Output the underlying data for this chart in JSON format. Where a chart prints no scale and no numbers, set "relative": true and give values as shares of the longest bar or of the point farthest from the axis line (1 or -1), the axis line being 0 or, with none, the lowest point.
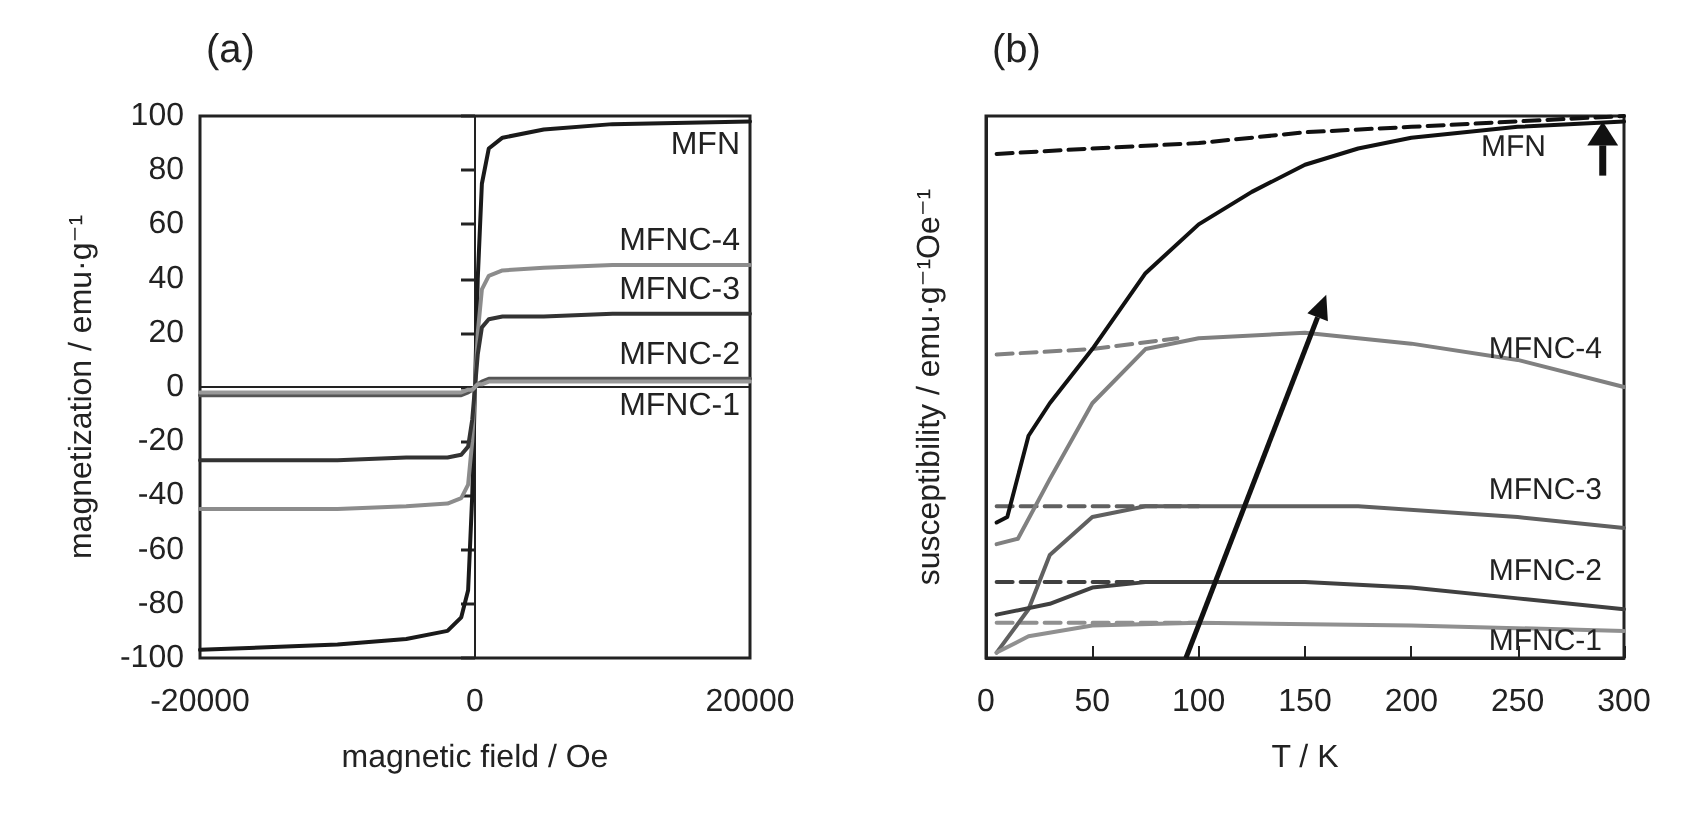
{
  "chart_data": [
    {
      "type": "line",
      "title": "(a)",
      "xlabel": "magnetic field / Oe",
      "ylabel": "magnetization / emu·g⁻¹",
      "x": [
        -20000,
        -10000,
        -5000,
        -2000,
        -1000,
        -500,
        -200,
        0,
        200,
        500,
        1000,
        2000,
        5000,
        10000,
        20000
      ],
      "xlim": [
        -20000,
        20000
      ],
      "xticks": [
        -20000,
        0,
        20000
      ],
      "ylim": [
        -100,
        100
      ],
      "yticks": [
        -100,
        -80,
        -60,
        -40,
        -20,
        0,
        20,
        40,
        60,
        80,
        100
      ],
      "marker": "none",
      "series": [
        {
          "name": "MFN",
          "color": "#1a1a1a",
          "values": [
            -97,
            -95,
            -93,
            -90,
            -85,
            -75,
            -40,
            0,
            40,
            75,
            88,
            92,
            95,
            97,
            98
          ]
        },
        {
          "name": "MFNC-4",
          "color": "#8c8c8c",
          "values": [
            -45,
            -45,
            -44,
            -43,
            -41,
            -36,
            -20,
            0,
            20,
            36,
            41,
            43,
            44,
            45,
            45
          ]
        },
        {
          "name": "MFNC-3",
          "color": "#333333",
          "values": [
            -27,
            -27,
            -26,
            -26,
            -25,
            -22,
            -12,
            0,
            12,
            22,
            25,
            26,
            26,
            27,
            27
          ]
        },
        {
          "name": "MFNC-2",
          "color": "#555555",
          "values": [
            -3,
            -3,
            -3,
            -3,
            -3,
            -2,
            -1,
            0,
            1,
            2,
            3,
            3,
            3,
            3,
            3
          ]
        },
        {
          "name": "MFNC-1",
          "color": "#999999",
          "values": [
            -2,
            -2,
            -2,
            -2,
            -2,
            -1,
            -1,
            0,
            1,
            1,
            2,
            2,
            2,
            2,
            2
          ]
        }
      ]
    },
    {
      "type": "line",
      "title": "(b)",
      "xlabel": "T / K",
      "ylabel": "susceptibility / emu·g⁻¹Oe⁻¹",
      "relative": true,
      "xlim": [
        0,
        300
      ],
      "xticks": [
        0,
        50,
        100,
        150,
        200,
        250,
        300
      ],
      "grid": false,
      "marker": "none",
      "series": [
        {
          "name": "MFN",
          "color": "#111111",
          "x": [
            5,
            10,
            20,
            30,
            50,
            75,
            100,
            125,
            150,
            175,
            200,
            250,
            300
          ],
          "values": [
            0.25,
            0.26,
            0.41,
            0.47,
            0.57,
            0.71,
            0.8,
            0.86,
            0.91,
            0.94,
            0.96,
            0.98,
            0.99
          ]
        },
        {
          "color": "#111111",
          "line_style": "dashed",
          "x": [
            5,
            50,
            100,
            150,
            200,
            250,
            300
          ],
          "values": [
            0.93,
            0.94,
            0.95,
            0.97,
            0.98,
            0.99,
            1.0
          ]
        },
        {
          "name": "MFNC-4",
          "color": "#808080",
          "x": [
            5,
            15,
            30,
            50,
            75,
            100,
            150,
            175,
            200,
            250,
            300
          ],
          "values": [
            0.21,
            0.22,
            0.33,
            0.47,
            0.57,
            0.59,
            0.6,
            0.59,
            0.58,
            0.55,
            0.5
          ]
        },
        {
          "color": "#808080",
          "line_style": "dashed",
          "x": [
            5,
            50,
            90
          ],
          "values": [
            0.56,
            0.57,
            0.59
          ]
        },
        {
          "name": "MFNC-3",
          "color": "#606060",
          "x": [
            5,
            20,
            30,
            50,
            75,
            100,
            175,
            250,
            300
          ],
          "values": [
            0.01,
            0.09,
            0.19,
            0.26,
            0.28,
            0.28,
            0.28,
            0.26,
            0.24
          ]
        },
        {
          "color": "#606060",
          "line_style": "dashed",
          "x": [
            5,
            50,
            100
          ],
          "values": [
            0.28,
            0.28,
            0.28
          ]
        },
        {
          "name": "MFNC-2",
          "color": "#404040",
          "x": [
            5,
            30,
            50,
            75,
            100,
            150,
            200,
            250,
            300
          ],
          "values": [
            0.08,
            0.1,
            0.13,
            0.14,
            0.14,
            0.14,
            0.13,
            0.11,
            0.09
          ]
        },
        {
          "color": "#404040",
          "line_style": "dashed",
          "x": [
            5,
            50,
            100
          ],
          "values": [
            0.14,
            0.14,
            0.14
          ]
        },
        {
          "name": "MFNC-1",
          "color": "#909090",
          "x": [
            5,
            20,
            50,
            100,
            200,
            300
          ],
          "values": [
            0.01,
            0.04,
            0.06,
            0.065,
            0.06,
            0.05
          ]
        },
        {
          "color": "#909090",
          "line_style": "dashed",
          "x": [
            5,
            50,
            100
          ],
          "values": [
            0.065,
            0.065,
            0.065
          ]
        }
      ]
    }
  ]
}
